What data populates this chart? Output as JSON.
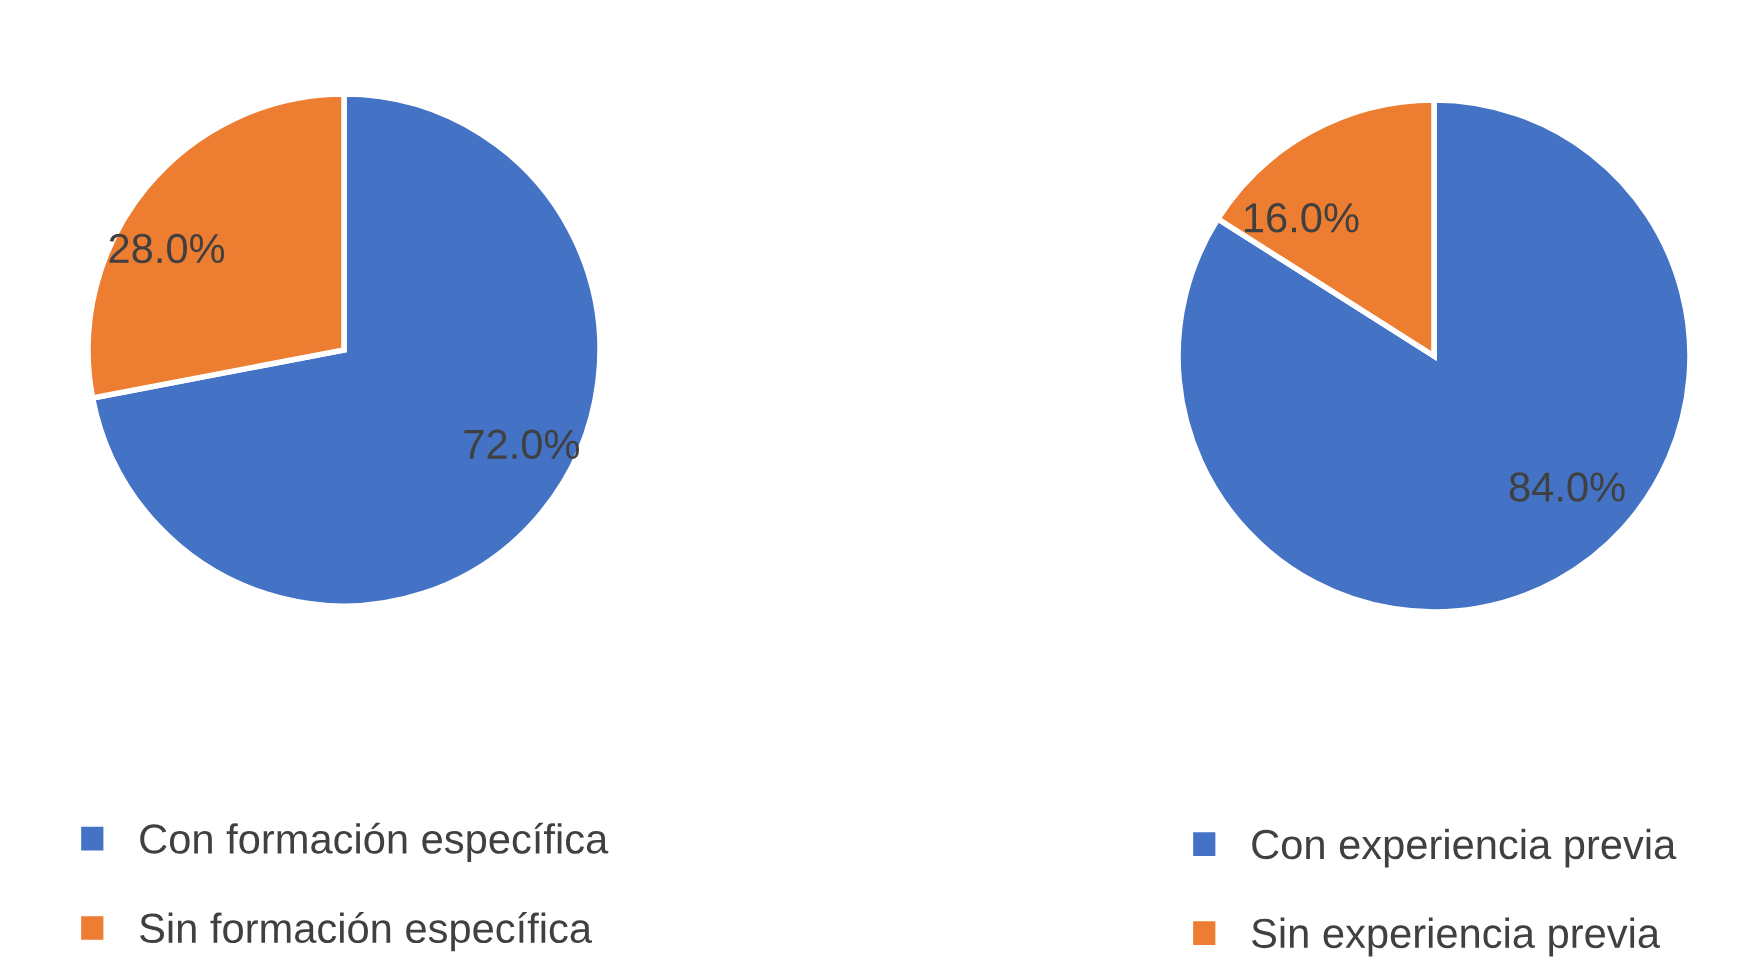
{
  "chart_data": [
    {
      "type": "pie",
      "categories": [
        "Con formación específica",
        "Sin formación específica"
      ],
      "values": [
        72,
        28
      ],
      "colors": [
        "#4472c4",
        "#ed7d31"
      ],
      "value_labels": [
        "72.0%",
        "28.0%"
      ],
      "legend": "bottom"
    },
    {
      "type": "pie",
      "categories": [
        "Con experiencia previa",
        "Sin experiencia previa"
      ],
      "values": [
        84,
        16
      ],
      "colors": [
        "#4472c4",
        "#ed7d31"
      ],
      "value_labels": [
        "84.0%",
        "16.0%"
      ],
      "legend": "bottom"
    }
  ]
}
